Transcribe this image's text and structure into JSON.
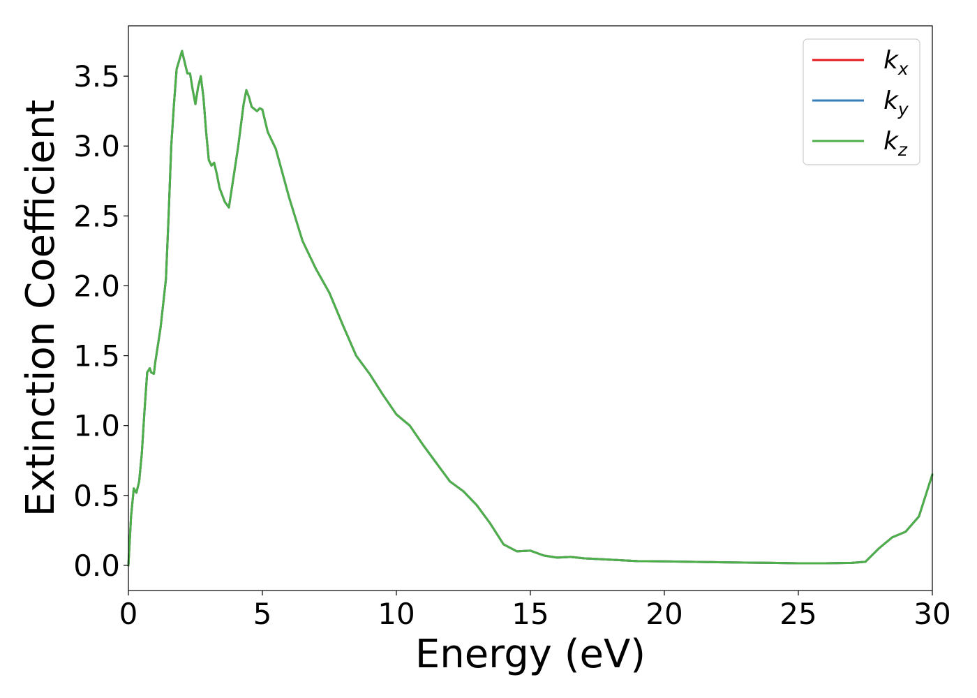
{
  "chart_data": {
    "type": "line",
    "xlabel": "Energy (eV)",
    "ylabel": "Extinction Coefficient",
    "xlim": [
      0,
      30
    ],
    "ylim": [
      -0.18,
      3.86
    ],
    "xticks": [
      0,
      5,
      10,
      15,
      20,
      25,
      30
    ],
    "xtick_labels": [
      "0",
      "5",
      "10",
      "15",
      "20",
      "25",
      "30"
    ],
    "yticks": [
      0.0,
      0.5,
      1.0,
      1.5,
      2.0,
      2.5,
      3.0,
      3.5
    ],
    "ytick_labels": [
      "0.0",
      "0.5",
      "1.0",
      "1.5",
      "2.0",
      "2.5",
      "3.0",
      "3.5"
    ],
    "grid": false,
    "legend_position": "top-right",
    "x": [
      0,
      0.1,
      0.2,
      0.3,
      0.4,
      0.5,
      0.6,
      0.7,
      0.8,
      0.85,
      0.95,
      1.0,
      1.2,
      1.4,
      1.5,
      1.6,
      1.7,
      1.8,
      2.0,
      2.1,
      2.2,
      2.3,
      2.4,
      2.5,
      2.6,
      2.7,
      2.8,
      2.9,
      3.0,
      3.1,
      3.2,
      3.3,
      3.4,
      3.6,
      3.75,
      3.9,
      4.1,
      4.3,
      4.4,
      4.5,
      4.6,
      4.8,
      4.9,
      5.0,
      5.1,
      5.2,
      5.5,
      6.0,
      6.5,
      7.0,
      7.5,
      8.0,
      8.5,
      9.0,
      9.5,
      10.0,
      10.5,
      11.0,
      11.5,
      12.0,
      12.5,
      13.0,
      13.5,
      14.0,
      14.5,
      15.0,
      15.5,
      16.0,
      16.5,
      17.0,
      18.0,
      19.0,
      20.0,
      21.0,
      22.0,
      23.0,
      24.0,
      25.0,
      26.0,
      27.0,
      27.5,
      28.0,
      28.5,
      29.0,
      29.5,
      30.0
    ],
    "series": [
      {
        "name": "k_x",
        "label_main": "k",
        "label_sub": "x",
        "color": "#e41a1c",
        "values": [
          0.0,
          0.35,
          0.55,
          0.52,
          0.6,
          0.8,
          1.1,
          1.38,
          1.41,
          1.38,
          1.37,
          1.45,
          1.7,
          2.05,
          2.5,
          3.0,
          3.3,
          3.55,
          3.68,
          3.6,
          3.52,
          3.52,
          3.4,
          3.3,
          3.42,
          3.5,
          3.35,
          3.1,
          2.9,
          2.86,
          2.88,
          2.8,
          2.7,
          2.6,
          2.56,
          2.75,
          3.0,
          3.3,
          3.4,
          3.35,
          3.28,
          3.25,
          3.27,
          3.26,
          3.18,
          3.1,
          2.98,
          2.63,
          2.32,
          2.12,
          1.95,
          1.72,
          1.5,
          1.37,
          1.22,
          1.08,
          1.0,
          0.86,
          0.73,
          0.6,
          0.53,
          0.43,
          0.3,
          0.15,
          0.1,
          0.105,
          0.07,
          0.055,
          0.06,
          0.05,
          0.04,
          0.03,
          0.028,
          0.025,
          0.022,
          0.02,
          0.018,
          0.015,
          0.015,
          0.018,
          0.025,
          0.12,
          0.2,
          0.24,
          0.35,
          0.65
        ]
      },
      {
        "name": "k_y",
        "label_main": "k",
        "label_sub": "y",
        "color": "#377eb8",
        "values": [
          0.0,
          0.35,
          0.55,
          0.52,
          0.6,
          0.8,
          1.1,
          1.38,
          1.41,
          1.38,
          1.37,
          1.45,
          1.7,
          2.05,
          2.5,
          3.0,
          3.3,
          3.55,
          3.68,
          3.6,
          3.52,
          3.52,
          3.4,
          3.3,
          3.42,
          3.5,
          3.35,
          3.1,
          2.9,
          2.86,
          2.88,
          2.8,
          2.7,
          2.6,
          2.56,
          2.75,
          3.0,
          3.3,
          3.4,
          3.35,
          3.28,
          3.25,
          3.27,
          3.26,
          3.18,
          3.1,
          2.98,
          2.63,
          2.32,
          2.12,
          1.95,
          1.72,
          1.5,
          1.37,
          1.22,
          1.08,
          1.0,
          0.86,
          0.73,
          0.6,
          0.53,
          0.43,
          0.3,
          0.15,
          0.1,
          0.105,
          0.07,
          0.055,
          0.06,
          0.05,
          0.04,
          0.03,
          0.028,
          0.025,
          0.022,
          0.02,
          0.018,
          0.015,
          0.015,
          0.018,
          0.025,
          0.12,
          0.2,
          0.24,
          0.35,
          0.65
        ]
      },
      {
        "name": "k_z",
        "label_main": "k",
        "label_sub": "z",
        "color": "#4daf4a",
        "values": [
          0.0,
          0.35,
          0.55,
          0.52,
          0.6,
          0.8,
          1.1,
          1.38,
          1.41,
          1.38,
          1.37,
          1.45,
          1.7,
          2.05,
          2.5,
          3.0,
          3.3,
          3.55,
          3.68,
          3.6,
          3.52,
          3.52,
          3.4,
          3.3,
          3.42,
          3.5,
          3.35,
          3.1,
          2.9,
          2.86,
          2.88,
          2.8,
          2.7,
          2.6,
          2.56,
          2.75,
          3.0,
          3.3,
          3.4,
          3.35,
          3.28,
          3.25,
          3.27,
          3.26,
          3.18,
          3.1,
          2.98,
          2.63,
          2.32,
          2.12,
          1.95,
          1.72,
          1.5,
          1.37,
          1.22,
          1.08,
          1.0,
          0.86,
          0.73,
          0.6,
          0.53,
          0.43,
          0.3,
          0.15,
          0.1,
          0.105,
          0.07,
          0.055,
          0.06,
          0.05,
          0.04,
          0.03,
          0.028,
          0.025,
          0.022,
          0.02,
          0.018,
          0.015,
          0.015,
          0.018,
          0.025,
          0.12,
          0.2,
          0.24,
          0.35,
          0.65
        ]
      }
    ]
  }
}
